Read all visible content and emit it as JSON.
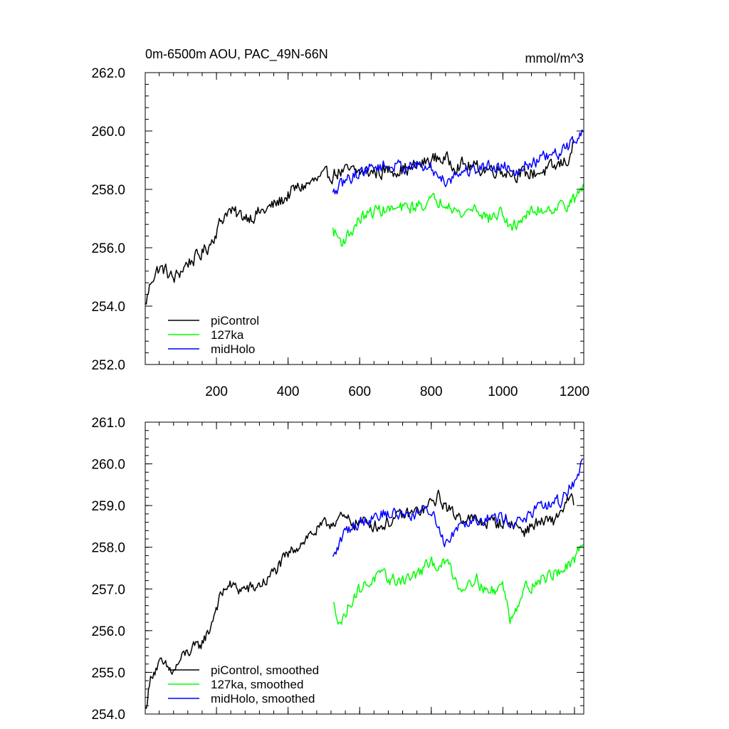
{
  "chart_data": [
    {
      "type": "line",
      "title": "0m-6500m AOU, PAC_49N-66N",
      "units": "mmol/m^3",
      "xlim": [
        1,
        1226
      ],
      "ylim": [
        252.0,
        262.0
      ],
      "x_ticks": [
        200,
        400,
        600,
        800,
        1000,
        1200
      ],
      "x_tick_labels": [
        "200",
        "400",
        "600",
        "800",
        "1000",
        "1200"
      ],
      "y_ticks": [
        252.0,
        254.0,
        256.0,
        258.0,
        260.0,
        262.0
      ],
      "y_tick_labels": [
        "252.0",
        "254.0",
        "256.0",
        "258.0",
        "260.0",
        "262.0"
      ],
      "legend_position": "bottom-left",
      "series": [
        {
          "name": "piControl",
          "color": "#000000",
          "x": [
            1,
            20,
            40,
            60,
            80,
            100,
            120,
            150,
            180,
            200,
            230,
            260,
            300,
            340,
            380,
            420,
            460,
            500,
            540,
            580,
            620,
            660,
            700,
            740,
            780,
            820,
            860,
            900,
            940,
            980,
            1020,
            1060,
            1100,
            1140,
            1180,
            1200
          ],
          "values": [
            254.0,
            255.0,
            255.3,
            255.2,
            254.9,
            255.2,
            255.5,
            255.7,
            256.1,
            256.6,
            257.3,
            257.1,
            257.1,
            257.3,
            257.6,
            258.0,
            258.2,
            258.4,
            258.6,
            258.6,
            258.6,
            258.6,
            258.7,
            258.7,
            258.9,
            259.1,
            258.9,
            258.8,
            258.7,
            258.7,
            258.6,
            258.5,
            258.6,
            258.7,
            259.0,
            259.6
          ],
          "noise": 0.4
        },
        {
          "name": "127ka",
          "color": "#00ff00",
          "x": [
            525,
            550,
            580,
            600,
            650,
            700,
            750,
            800,
            850,
            880,
            920,
            960,
            1000,
            1020,
            1060,
            1100,
            1150,
            1200,
            1226
          ],
          "values": [
            256.6,
            256.2,
            256.6,
            257.0,
            257.3,
            257.3,
            257.4,
            257.6,
            257.6,
            257.1,
            257.4,
            257.0,
            257.2,
            256.6,
            257.1,
            257.3,
            257.4,
            257.6,
            258.2
          ],
          "noise": 0.35
        },
        {
          "name": "midHolo",
          "color": "#0000ff",
          "x": [
            525,
            560,
            600,
            650,
            700,
            750,
            800,
            840,
            880,
            920,
            960,
            1000,
            1040,
            1080,
            1120,
            1160,
            1200,
            1226
          ],
          "values": [
            257.8,
            258.3,
            258.6,
            258.8,
            258.8,
            258.8,
            258.7,
            258.3,
            258.6,
            258.7,
            258.8,
            258.8,
            258.7,
            258.9,
            259.1,
            259.2,
            259.7,
            260.1
          ],
          "noise": 0.35
        }
      ]
    },
    {
      "type": "line",
      "title": "",
      "xlim": [
        1,
        1226
      ],
      "ylim": [
        254.0,
        261.0
      ],
      "x_ticks": [
        200,
        400,
        600,
        800,
        1000,
        1200
      ],
      "x_tick_labels": [],
      "y_ticks": [
        254.0,
        255.0,
        256.0,
        257.0,
        258.0,
        259.0,
        260.0,
        261.0
      ],
      "y_tick_labels": [
        "254.0",
        "255.0",
        "256.0",
        "257.0",
        "258.0",
        "259.0",
        "260.0",
        "261.0"
      ],
      "legend_position": "bottom-left",
      "series": [
        {
          "name": "piControl, smoothed",
          "color": "#000000",
          "x": [
            1,
            20,
            40,
            60,
            80,
            100,
            120,
            150,
            180,
            200,
            230,
            260,
            300,
            340,
            380,
            420,
            460,
            500,
            540,
            580,
            620,
            660,
            700,
            740,
            780,
            820,
            860,
            900,
            940,
            980,
            1020,
            1060,
            1100,
            1140,
            1180,
            1200
          ],
          "values": [
            254.1,
            255.0,
            255.2,
            255.1,
            255.0,
            255.3,
            255.5,
            255.6,
            256.0,
            256.6,
            257.1,
            257.0,
            257.0,
            257.2,
            257.6,
            258.0,
            258.3,
            258.5,
            258.7,
            258.6,
            258.6,
            258.5,
            258.7,
            258.8,
            258.9,
            259.2,
            258.8,
            258.7,
            258.6,
            258.6,
            258.6,
            258.4,
            258.6,
            258.6,
            259.1,
            259.1
          ],
          "noise": 0.25
        },
        {
          "name": "127ka, smoothed",
          "color": "#00ff00",
          "x": [
            525,
            550,
            580,
            600,
            650,
            700,
            750,
            800,
            850,
            880,
            920,
            960,
            1000,
            1020,
            1060,
            1100,
            1150,
            1200,
            1226
          ],
          "values": [
            256.6,
            256.2,
            256.8,
            257.0,
            257.3,
            257.2,
            257.3,
            257.6,
            257.6,
            257.0,
            257.3,
            256.9,
            257.1,
            256.3,
            257.0,
            257.2,
            257.4,
            257.6,
            258.3
          ],
          "noise": 0.25
        },
        {
          "name": "midHolo, smoothed",
          "color": "#0000ff",
          "x": [
            525,
            560,
            600,
            650,
            700,
            750,
            800,
            840,
            880,
            920,
            960,
            1000,
            1040,
            1080,
            1120,
            1160,
            1200,
            1226
          ],
          "values": [
            257.7,
            258.4,
            258.6,
            258.8,
            258.8,
            258.8,
            258.9,
            258.1,
            258.6,
            258.7,
            258.7,
            258.7,
            258.6,
            258.8,
            259.0,
            259.1,
            259.6,
            260.1
          ],
          "noise": 0.25
        }
      ]
    }
  ]
}
